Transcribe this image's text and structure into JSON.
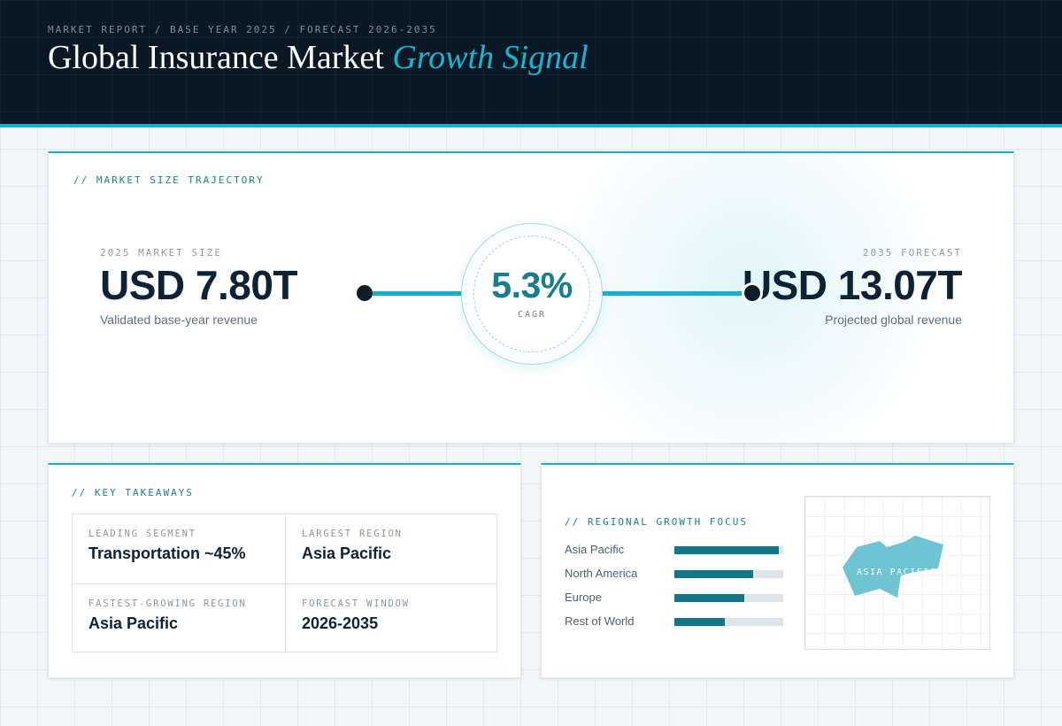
{
  "header": {
    "breadcrumb": "MARKET REPORT / BASE YEAR 2025 / FORECAST 2026-2035",
    "title_main": "Global Insurance Market",
    "title_accent": "Growth Signal"
  },
  "trajectory": {
    "section_label": "// MARKET SIZE TRAJECTORY",
    "base": {
      "label": "2025 MARKET SIZE",
      "value": "USD 7.80T",
      "sub": "Validated base-year revenue"
    },
    "forecast": {
      "label": "2035 FORECAST",
      "value": "USD 13.07T",
      "sub": "Projected global revenue"
    },
    "cagr": {
      "value": "5.3%",
      "label": "CAGR"
    }
  },
  "takeaways": {
    "section_label": "// KEY TAKEAWAYS",
    "items": [
      {
        "label": "LEADING SEGMENT",
        "value": "Transportation ~45%"
      },
      {
        "label": "LARGEST REGION",
        "value": "Asia Pacific"
      },
      {
        "label": "FASTEST-GROWING REGION",
        "value": "Asia Pacific"
      },
      {
        "label": "FORECAST WINDOW",
        "value": "2026-2035"
      }
    ]
  },
  "regional": {
    "section_label": "// REGIONAL GROWTH FOCUS",
    "regions": [
      {
        "name": "Asia Pacific",
        "share": 0.96
      },
      {
        "name": "North America",
        "share": 0.72
      },
      {
        "name": "Europe",
        "share": 0.64
      },
      {
        "name": "Rest of World",
        "share": 0.46
      }
    ],
    "map_label": "ASIA PACIFIC"
  },
  "colors": {
    "accent": "#13b1cc",
    "header_bg": "#0a1826",
    "bar_fill": "#137688",
    "map_region": "#6fc4d3"
  }
}
